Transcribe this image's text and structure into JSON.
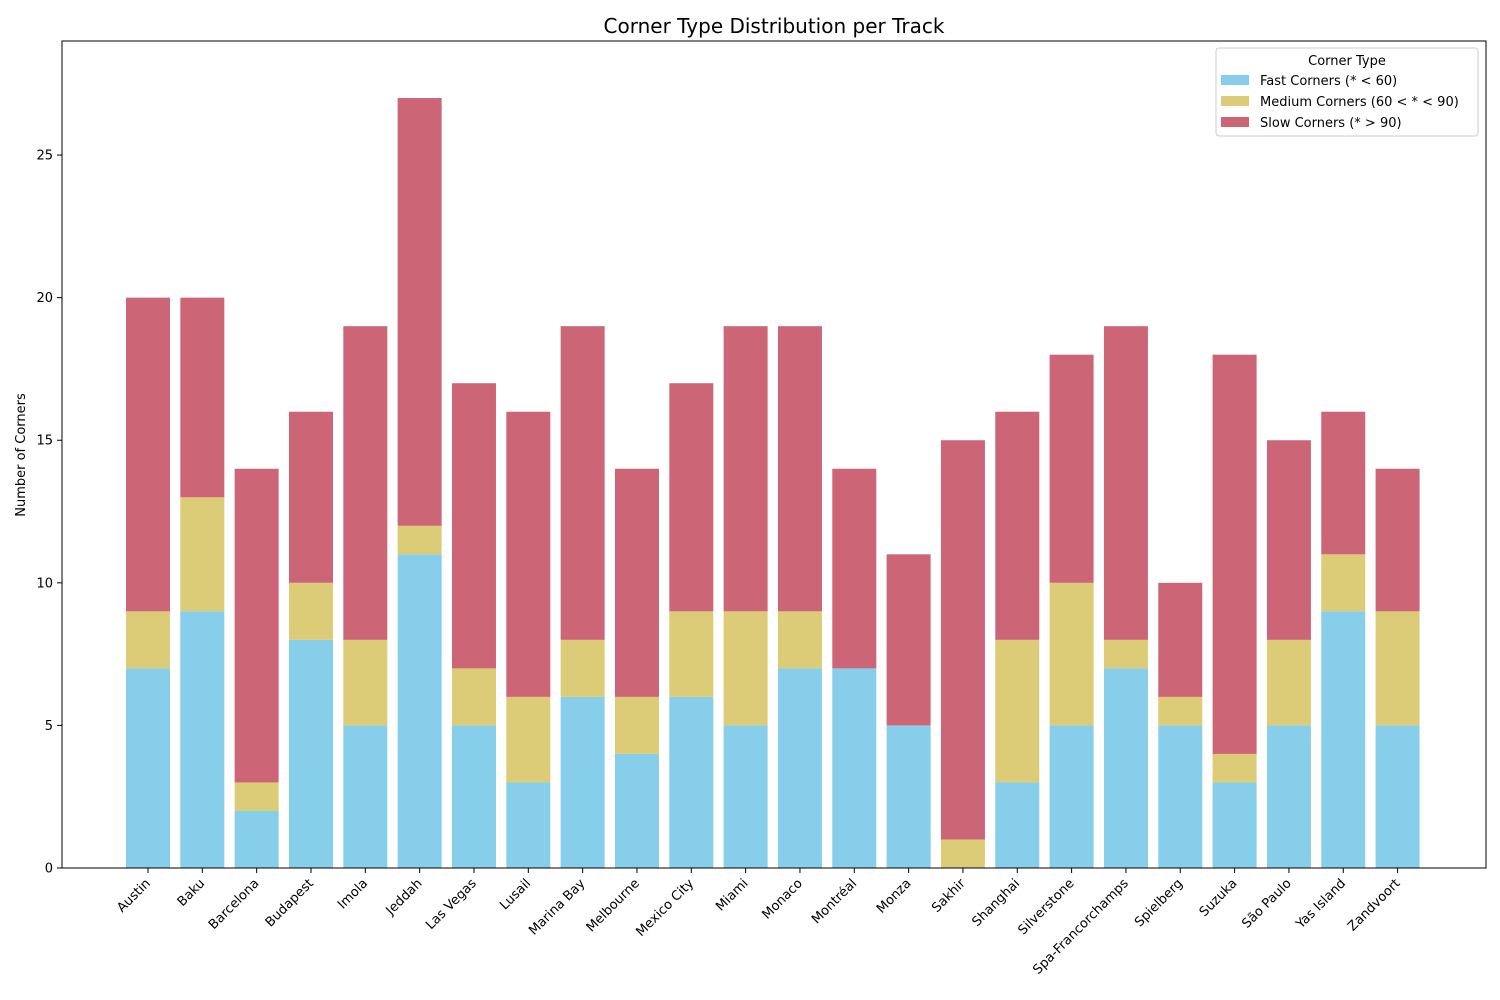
{
  "chart_data": {
    "type": "bar",
    "stacked": true,
    "title": "Corner Type Distribution per Track",
    "xlabel": "",
    "ylabel": "Number of Corners",
    "ylim": [
      0,
      29
    ],
    "yticks": [
      0,
      5,
      10,
      15,
      20,
      25
    ],
    "grid": false,
    "legend": {
      "title": "Corner Type",
      "placement": "top-right"
    },
    "categories": [
      "Austin",
      "Baku",
      "Barcelona",
      "Budapest",
      "Imola",
      "Jeddah",
      "Las Vegas",
      "Lusail",
      "Marina Bay",
      "Melbourne",
      "Mexico City",
      "Miami",
      "Monaco",
      "Montréal",
      "Monza",
      "Sakhir",
      "Shanghai",
      "Silverstone",
      "Spa-Francorchamps",
      "Spielberg",
      "Suzuka",
      "São Paulo",
      "Yas Island",
      "Zandvoort"
    ],
    "series": [
      {
        "name": "Fast Corners (* < 60)",
        "color": "#87ceeb",
        "values": [
          7,
          9,
          2,
          8,
          5,
          11,
          5,
          3,
          6,
          4,
          6,
          5,
          7,
          7,
          5,
          0,
          3,
          5,
          7,
          5,
          3,
          5,
          9,
          5
        ]
      },
      {
        "name": "Medium Corners (60 < * < 90)",
        "color": "#dccc77",
        "values": [
          2,
          4,
          1,
          2,
          3,
          1,
          2,
          3,
          2,
          2,
          3,
          4,
          2,
          0,
          0,
          1,
          5,
          5,
          1,
          1,
          1,
          3,
          2,
          4
        ]
      },
      {
        "name": "Slow Corners (* > 90)",
        "color": "#cc6677",
        "values": [
          11,
          7,
          11,
          6,
          11,
          15,
          10,
          10,
          11,
          8,
          8,
          10,
          10,
          7,
          6,
          14,
          8,
          8,
          11,
          4,
          14,
          7,
          5,
          5
        ]
      }
    ]
  }
}
